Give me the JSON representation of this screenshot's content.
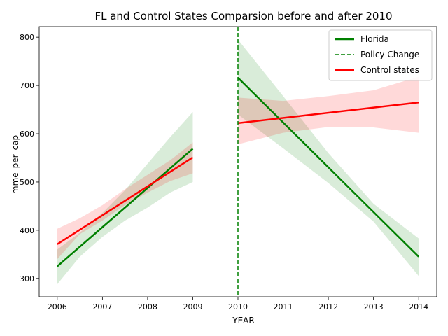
{
  "chart_data": {
    "type": "line",
    "title": "FL and Control States Comparsion before and after 2010",
    "xlabel": "YEAR",
    "ylabel": "mme_per_cap",
    "xlim": [
      2005.6,
      2014.4
    ],
    "ylim": [
      262,
      822
    ],
    "x_ticks": [
      2006,
      2007,
      2008,
      2009,
      2010,
      2011,
      2012,
      2013,
      2014
    ],
    "y_ticks": [
      300,
      400,
      500,
      600,
      700,
      800
    ],
    "grid": false,
    "legend_position": "top-right",
    "policy_change_x": 2010,
    "legend": [
      {
        "label": "Florida",
        "color": "#008000",
        "style": "solid"
      },
      {
        "label": "Policy Change",
        "color": "#008000",
        "style": "dashed"
      },
      {
        "label": "Control states",
        "color": "#ff0000",
        "style": "solid"
      }
    ],
    "series": [
      {
        "name": "Florida",
        "color": "#008000",
        "band_color": "#008000",
        "segments": [
          {
            "x": [
              2006,
              2009
            ],
            "y": [
              325,
              569
            ],
            "band": {
              "x": [
                2006,
                2006.5,
                2007,
                2007.5,
                2008,
                2008.5,
                2009
              ],
              "upper": [
                360,
                395,
                436,
                483,
                538,
                593,
                645
              ],
              "lower": [
                288,
                345,
                386,
                420,
                447,
                478,
                500
              ]
            }
          },
          {
            "x": [
              2010,
              2014
            ],
            "y": [
              716,
              345
            ],
            "band": {
              "x": [
                2010,
                2011,
                2012,
                2013,
                2014
              ],
              "upper": [
                795,
                678,
                560,
                455,
                383
              ],
              "lower": [
                640,
                570,
                498,
                418,
                305
              ]
            }
          }
        ]
      },
      {
        "name": "Control states",
        "color": "#ff0000",
        "band_color": "#ff0000",
        "segments": [
          {
            "x": [
              2006,
              2009
            ],
            "y": [
              371,
              551
            ],
            "band": {
              "x": [
                2006,
                2006.5,
                2007,
                2007.5,
                2008,
                2008.5,
                2009
              ],
              "upper": [
                403,
                425,
                452,
                485,
                515,
                545,
                582
              ],
              "lower": [
                340,
                392,
                420,
                452,
                478,
                502,
                518
              ]
            }
          },
          {
            "x": [
              2010,
              2014
            ],
            "y": [
              622,
              665
            ],
            "band": {
              "x": [
                2010,
                2011,
                2012,
                2013,
                2014
              ],
              "upper": [
                675,
                668,
                678,
                690,
                718
              ],
              "lower": [
                578,
                602,
                614,
                613,
                602
              ]
            }
          }
        ]
      }
    ]
  }
}
